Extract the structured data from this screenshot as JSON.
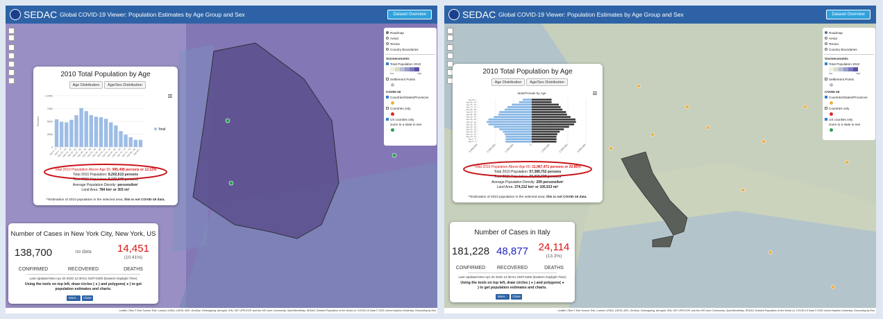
{
  "panels": [
    {
      "header": {
        "logo": "SEDAC",
        "title": "Global COVID-19 Viewer: Population Estimates by Age Group and Sex",
        "button": "Dataset Overview"
      },
      "layers": {
        "base": [
          "Roadmap",
          "Aerial",
          "Terrain",
          "Country Boundaries"
        ],
        "socio_heading": "Socioeconomic",
        "population": "Total Population 2010",
        "low": "low",
        "high": "high",
        "settlement": "Settlement Points",
        "covid_heading": "COVID-19",
        "covid": [
          "Countries/States/Provinces",
          "Countries only"
        ],
        "us": "US counties only",
        "us_note": "zoom to a state to see"
      },
      "popup": {
        "title": "2010 Total Population by Age",
        "buttons": [
          "Age Distribution",
          "Age/Sex Distribution"
        ],
        "chart": {
          "type": "bar",
          "ylabel": "Persons",
          "legend": "Total",
          "color": "#9dbde6",
          "categories": [
            "Age 0 - 4",
            "Age 5 - 9",
            "Age 10 - 14",
            "Age 15 - 19",
            "Age 20 - 24",
            "Age 25 - 29",
            "Age 30 - 34",
            "Age 35 - 39",
            "Age 40 - 44",
            "Age 45 - 49",
            "Age 50 - 54",
            "Age 55 - 59",
            "Age 60 - 64",
            "Age 65 - 69",
            "Age 70 - 74",
            "Age 75 - 79",
            "Age 80 - 84",
            "Age 85 +"
          ],
          "values": [
            540000,
            490000,
            480000,
            530000,
            620000,
            760000,
            700000,
            620000,
            590000,
            580000,
            550000,
            480000,
            420000,
            310000,
            240000,
            190000,
            140000,
            140000
          ],
          "ylim": [
            0,
            1000000
          ],
          "yticks": [
            0,
            {
              "value": 250000,
              "label": "250k"
            },
            {
              "value": 500000,
              "label": "500k"
            },
            {
              "value": 750000,
              "label": "750k"
            },
            {
              "value": 1000000,
              "label": "1,000k"
            }
          ]
        },
        "stats": [
          [
            "Total 2010 Population Above Age 65:",
            "995,498 persons or 12.13%"
          ],
          [
            "Total 2010 Population:",
            "8,202,613 persons"
          ],
          [
            "Total 2020 Population:",
            "8,121,040 persons"
          ],
          [
            "Average Population Density:",
            "persons/km²"
          ],
          [
            "Land Area:",
            "784 km² or 303 mi²"
          ]
        ],
        "note": [
          "**Estimation of 2010 population in the selected area;",
          "this is not COVID-19 data."
        ]
      },
      "cases": {
        "title": "Number of Cases in New York City, New York, US",
        "confirmed": "138,700",
        "recovered": "no data",
        "deaths": "14,451",
        "deaths_pct": "(10.41%)",
        "labels": [
          "CONFIRMED",
          "RECOVERED",
          "DEATHS"
        ],
        "updated": "Last Updated Mon Apr 20 2020 12:30:51 GMT-0400 (Eastern Daylight Time)",
        "instructions": "Using the tools on top left, draw circles ( ● ) and polygons( ● ) to get population estimates and charts.",
        "buttons": [
          "More...",
          "Close"
        ]
      },
      "footer": "Leaflet | Tiles © Esri Source: Esri, i-cubed, USDA, USGS, AEX, GeoEye, Getmapping, Aerogrid, IGN, IGP, UPR-EGP, and the GIS User Community, OpenStreetMap, SEDAC Gridded Population of the World v4, COVID-19 Data © 2020 Johns Hopkins University, Geocoding by Esri"
    },
    {
      "header": {
        "logo": "SEDAC",
        "title": "Global COVID-19 Viewer: Population Estimates by Age Group and Sex",
        "button": "Dataset Overview"
      },
      "layers": {
        "base": [
          "Roadmap",
          "Aerial",
          "Terrain",
          "Country Boundaries"
        ],
        "socio_heading": "Socioeconomic",
        "population": "Total Population 2010",
        "low": "low",
        "high": "high",
        "settlement": "Settlement Points",
        "covid_heading": "COVID-19",
        "covid": [
          "Countries/States/Provinces",
          "Countries only"
        ],
        "us": "US counties only",
        "us_note": "zoom to a state to see"
      },
      "popup": {
        "title": "2010 Total Population by Age",
        "buttons": [
          "Age Distribution",
          "Age/Sex Distribution"
        ],
        "chart": {
          "type": "pyramid",
          "title": "Male/Female by Age",
          "categories": [
            "Age 0 - 4",
            "Age 5 - 9",
            "Age 10 - 14",
            "Age 15 - 19",
            "Age 20 - 24",
            "Age 25 - 29",
            "Age 30 - 34",
            "Age 35 - 39",
            "Age 40 - 44",
            "Age 45 - 49",
            "Age 50 - 54",
            "Age 55 - 59",
            "Age 60 - 64",
            "Age 65 - 69",
            "Age 70 - 74",
            "Age 75 - 79",
            "Age 80 - 84",
            "Age 85 +"
          ],
          "series": [
            {
              "color": "#86b6e6",
              "values": [
                1450000,
                1450000,
                1450000,
                1500000,
                1600000,
                1800000,
                2100000,
                2400000,
                2500000,
                2400000,
                2100000,
                1850000,
                1800000,
                1500000,
                1350000,
                1100000,
                700000,
                500000
              ]
            },
            {
              "color": "#3a3a3a",
              "values": [
                1370000,
                1370000,
                1370000,
                1420000,
                1550000,
                1780000,
                2070000,
                2350000,
                2450000,
                2420000,
                2150000,
                1950000,
                1900000,
                1700000,
                1600000,
                1500000,
                1100000,
                1100000
              ]
            }
          ],
          "xlim": [
            -3000000,
            3000000
          ],
          "xticks": [
            {
              "value": -3000000,
              "label": "3,000,000"
            },
            {
              "value": -2000000,
              "label": "2,000,000"
            },
            {
              "value": -1000000,
              "label": "1,000,000"
            },
            0,
            {
              "value": 1000000,
              "label": "1,000,000"
            },
            {
              "value": 2000000,
              "label": "2,000,000"
            },
            {
              "value": 3000000,
              "label": "3,000,000"
            }
          ]
        },
        "stats": [
          [
            "Total 2010 Population Above Age 65:",
            "11,967,471 persons or 20.85%"
          ],
          [
            "Total 2010 Population:",
            "57,389,752 persons"
          ],
          [
            "Total 2020 Population:",
            "59,019,608 persons"
          ],
          [
            "Average Population Density:",
            "209 persons/km²"
          ],
          [
            "Land Area:",
            "274,312 km² or 105,913 mi²"
          ]
        ],
        "note": [
          "**Estimation of 2010 population in the selected area;",
          "this is not COVID-19 data."
        ]
      },
      "cases": {
        "title": "Number of Cases in Italy",
        "confirmed": "181,228",
        "recovered": "48,877",
        "deaths": "24,114",
        "deaths_pct": "(13.3%)",
        "labels": [
          "CONFIRMED",
          "RECOVERED",
          "DEATHS"
        ],
        "updated": "Last Updated Mon Apr 20 2020 12:30:51 GMT-0400 (Eastern Daylight Time)",
        "instructions": "Using the tools on top left, draw circles ( ● ) and polygons( ● ) to get population estimates and charts.",
        "buttons": [
          "More...",
          "Close"
        ]
      },
      "footer": "Leaflet | Tiles © Esri Source: Esri, i-cubed, USDA, USGS, AEX, GeoEye, Getmapping, Aerogrid, IGN, IGP, UPR-EGP, and the GIS User Community, OpenStreetMap, SEDAC Gridded Population of the World v4, COVID-19 Data © 2020 Johns Hopkins University, Geocoding by Esri"
    }
  ]
}
